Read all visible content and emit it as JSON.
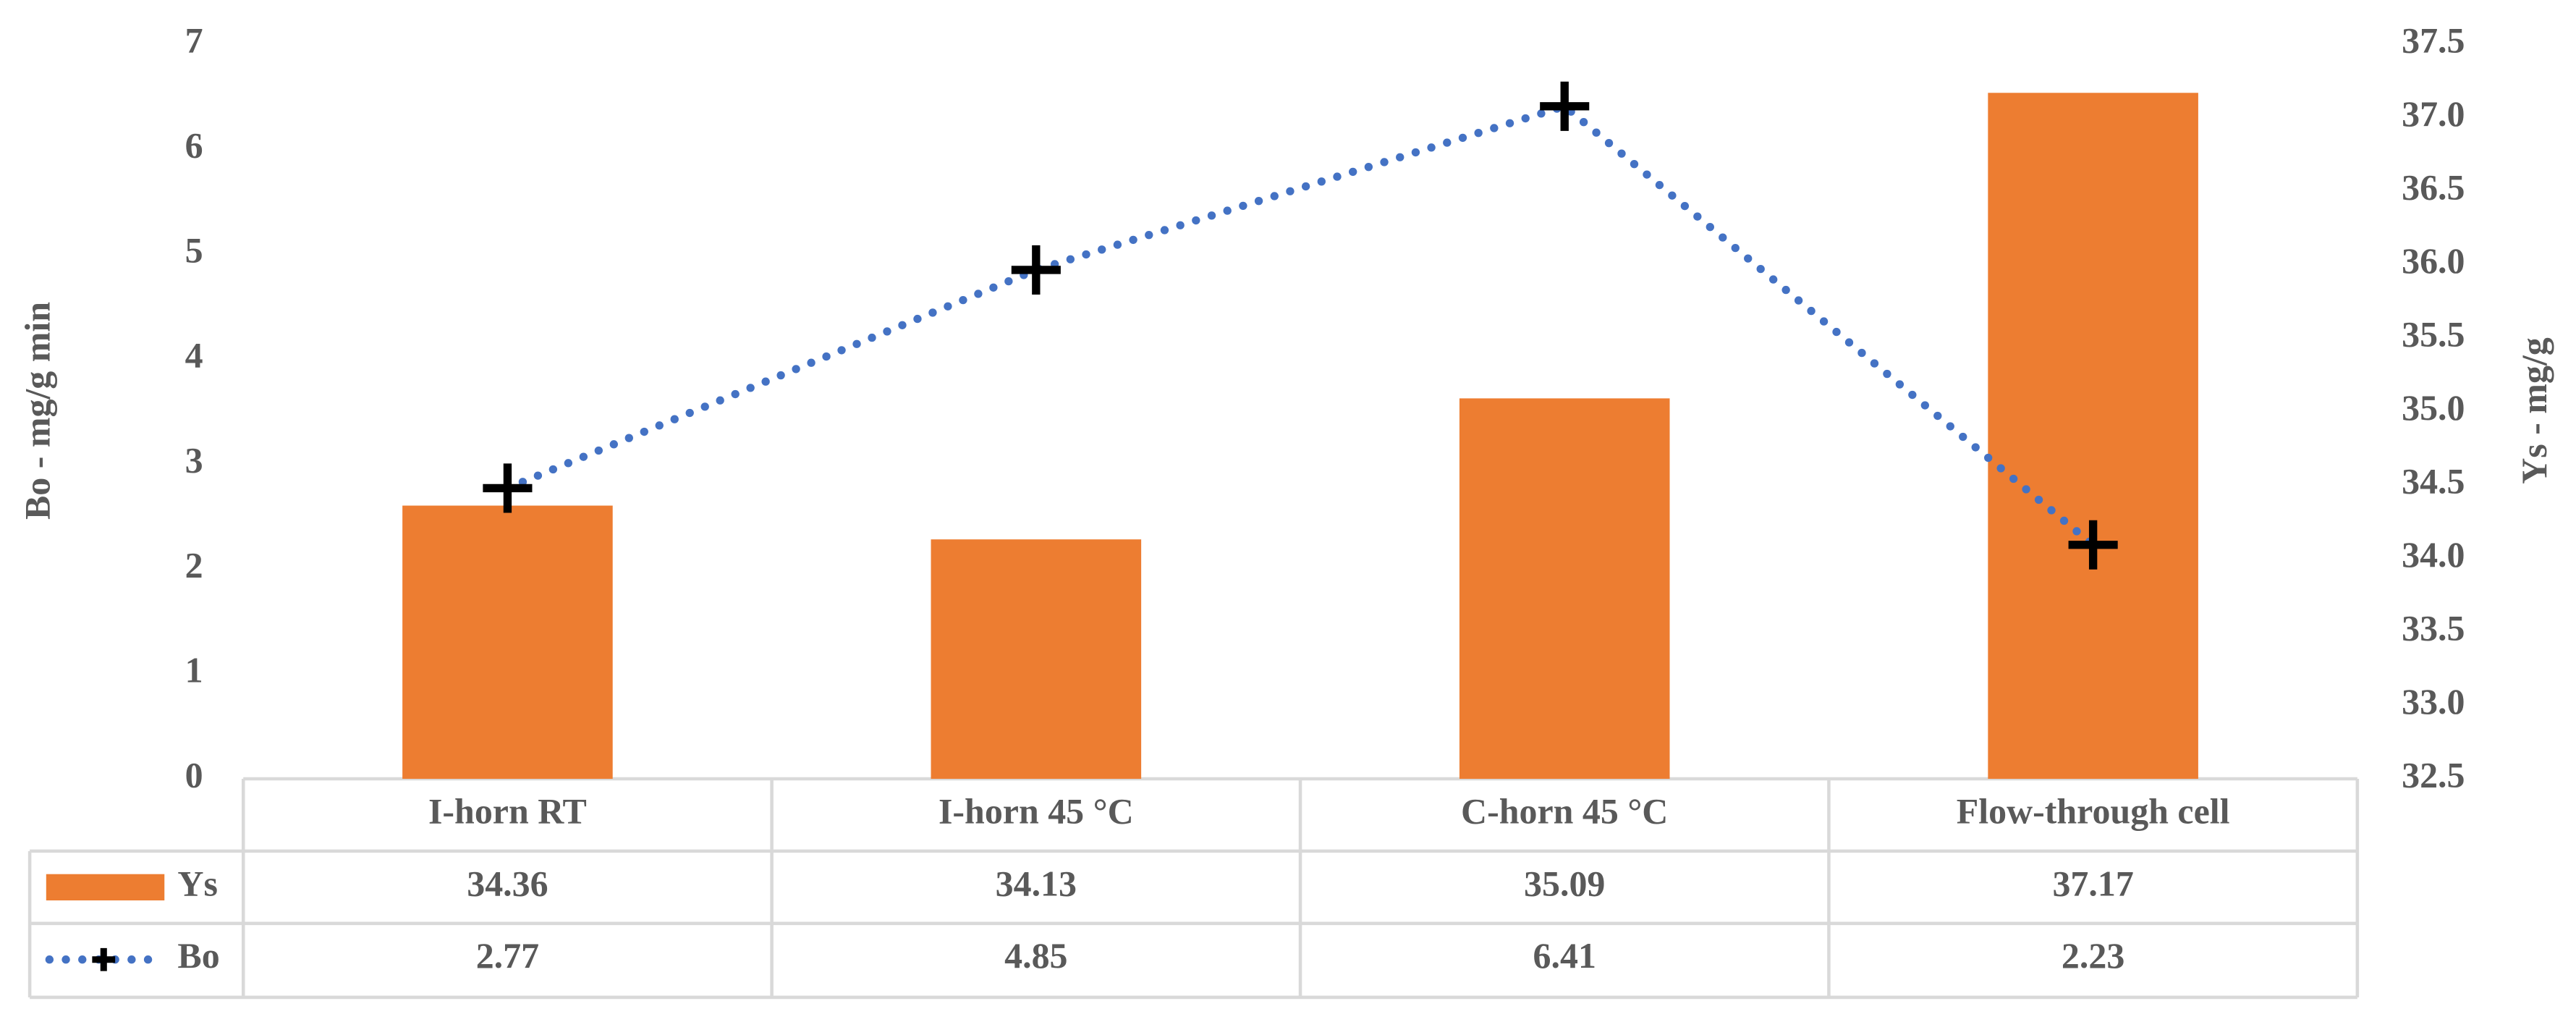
{
  "chart_data": {
    "type": "combo",
    "categories": [
      "I-horn RT",
      "I-horn 45 °C",
      "C-horn 45 °C",
      "Flow-through cell"
    ],
    "series": [
      {
        "name": "Ys",
        "type": "bar",
        "axis": "y2",
        "color": "#ed7d31",
        "values": [
          34.36,
          34.13,
          35.09,
          37.17
        ]
      },
      {
        "name": "Bo",
        "type": "line",
        "color": "#4472c4",
        "marker_color": "#000000",
        "values": [
          2.77,
          4.85,
          6.41,
          2.23
        ]
      }
    ],
    "ylabel": "Bo - mg/g min",
    "y2label": "Ys - mg/g",
    "ylim": [
      0,
      7
    ],
    "yticks": [
      0,
      1,
      2,
      3,
      4,
      5,
      6,
      7
    ],
    "y2lim": [
      32.5,
      37.5
    ],
    "y2ticks": [
      32.5,
      {
        "value": 33,
        "label": "33.0"
      },
      33.5,
      {
        "value": 34,
        "label": "34.0"
      },
      34.5,
      {
        "value": 35,
        "label": "35.0"
      },
      35.5,
      {
        "value": 36,
        "label": "36.0"
      },
      36.5,
      {
        "value": 37,
        "label": "37.0"
      },
      37.5
    ],
    "grid": false
  }
}
